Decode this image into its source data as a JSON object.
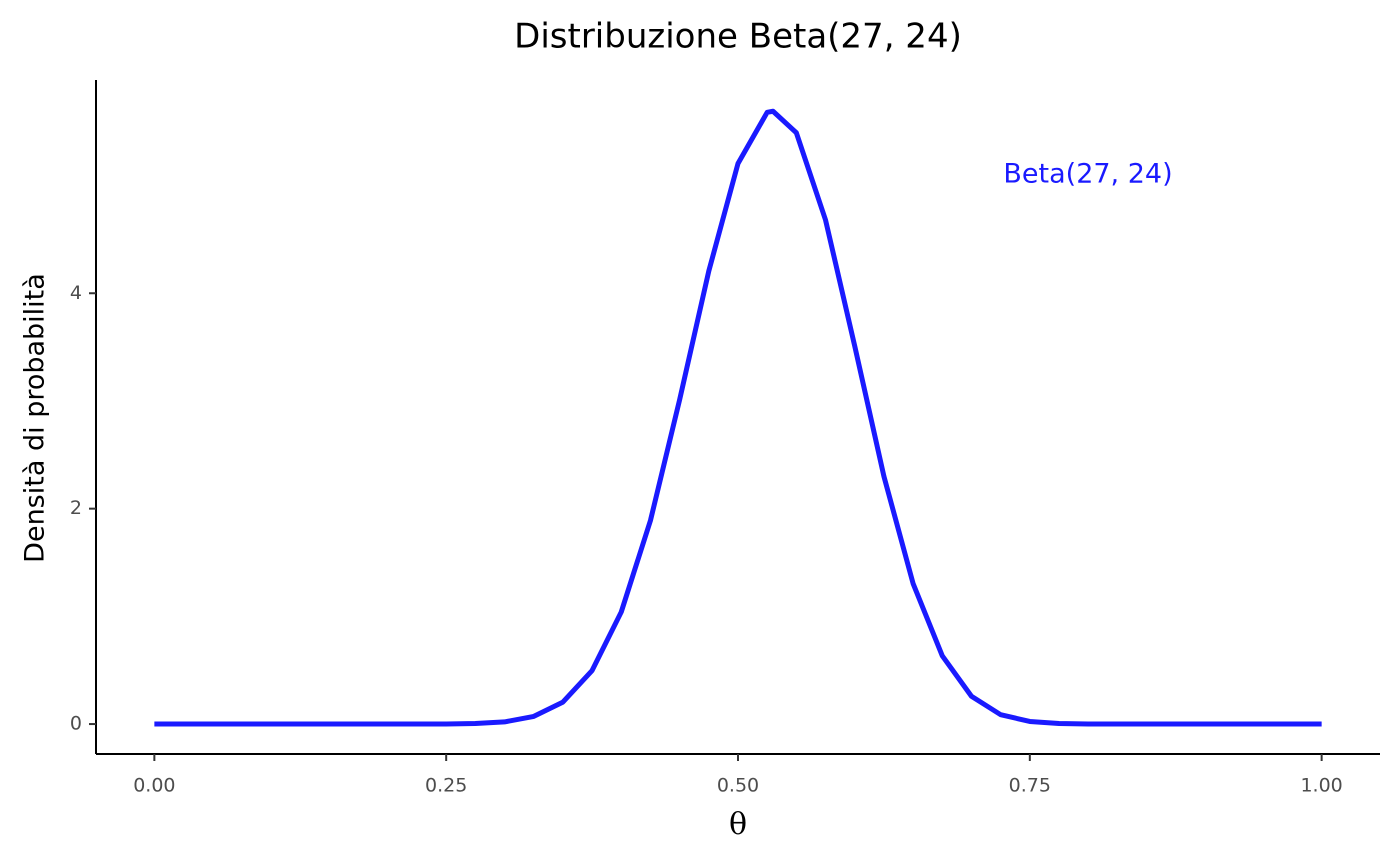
{
  "chart_data": {
    "type": "line",
    "title": "Distribuzione Beta(27, 24)",
    "x_label": "θ",
    "y_label": "Densità di probabilità",
    "annotation": "Beta(27, 24)",
    "x": [
      0,
      0.025,
      0.05,
      0.075,
      0.1,
      0.125,
      0.15,
      0.175,
      0.2,
      0.225,
      0.25,
      0.275,
      0.3,
      0.325,
      0.35,
      0.375,
      0.4,
      0.425,
      0.45,
      0.475,
      0.5,
      0.525,
      0.53,
      0.55,
      0.575,
      0.6,
      0.625,
      0.65,
      0.675,
      0.7,
      0.725,
      0.75,
      0.775,
      0.8,
      0.825,
      0.85,
      0.875,
      0.9,
      0.925,
      0.95,
      0.975,
      1
    ],
    "series": [
      {
        "name": "Beta(27, 24)",
        "color": "#1a1aff",
        "values": [
          0,
          0,
          0,
          0,
          0,
          0,
          0,
          0,
          0,
          0,
          0.001,
          0.005,
          0.02,
          0.071,
          0.204,
          0.497,
          1.041,
          1.89,
          3.012,
          4.207,
          5.205,
          5.68,
          5.69,
          5.49,
          4.68,
          3.51,
          2.3,
          1.305,
          0.634,
          0.258,
          0.087,
          0.024,
          0.005,
          0.001,
          0,
          0,
          0,
          0,
          0,
          0,
          0,
          0
        ]
      }
    ],
    "xlim": [
      -0.05,
      1.05
    ],
    "ylim": [
      -0.278,
      5.98
    ],
    "xticks": [
      {
        "value": 0,
        "label": "0.00"
      },
      0.25,
      {
        "value": 0.5,
        "label": "0.50"
      },
      0.75,
      {
        "value": 1,
        "label": "1.00"
      }
    ],
    "yticks": [
      0,
      2,
      4
    ],
    "grid": false
  }
}
